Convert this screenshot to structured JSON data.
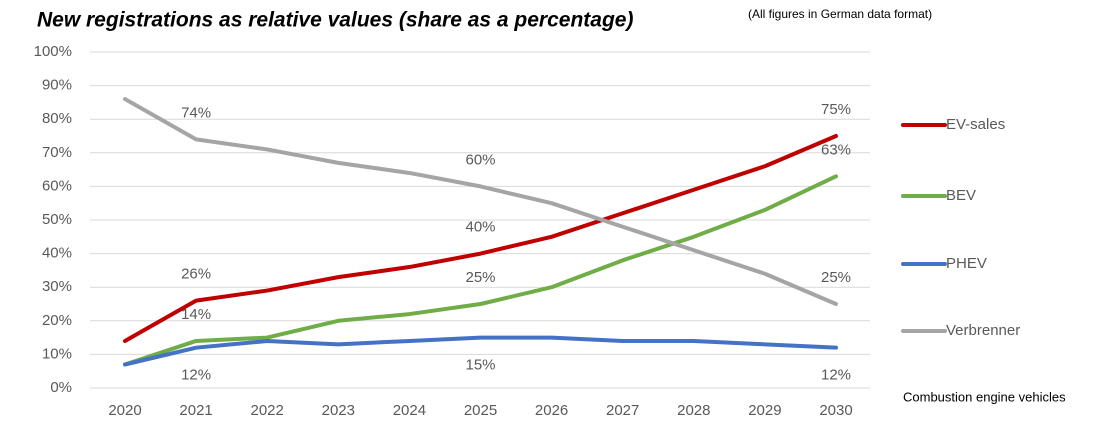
{
  "chart_data": {
    "type": "line",
    "title": "New registrations as relative values (share as a percentage)",
    "note": "(All figures in German data format)",
    "annotation": "Combustion engine vehicles",
    "categories": [
      "2020",
      "2021",
      "2022",
      "2023",
      "2024",
      "2025",
      "2026",
      "2027",
      "2028",
      "2029",
      "2030"
    ],
    "ylim": [
      0,
      100
    ],
    "yticks": [
      {
        "value": 0,
        "label": "0%"
      },
      {
        "value": 10,
        "label": "10%"
      },
      {
        "value": 20,
        "label": "20%"
      },
      {
        "value": 30,
        "label": "30%"
      },
      {
        "value": 40,
        "label": "40%"
      },
      {
        "value": 50,
        "label": "50%"
      },
      {
        "value": 60,
        "label": "60%"
      },
      {
        "value": 70,
        "label": "70%"
      },
      {
        "value": 80,
        "label": "80%"
      },
      {
        "value": 90,
        "label": "90%"
      },
      {
        "value": 100,
        "label": "100%"
      }
    ],
    "grid": true,
    "legend": "right",
    "series": [
      {
        "name": "EV-sales",
        "color": "#c00000",
        "values": [
          14,
          26,
          29,
          33,
          36,
          40,
          45,
          52,
          59,
          66,
          75
        ],
        "value_labels": [
          null,
          "26%",
          null,
          null,
          null,
          "40%",
          null,
          null,
          null,
          null,
          "75%"
        ]
      },
      {
        "name": "BEV",
        "color": "#70ad47",
        "values": [
          7,
          14,
          15,
          20,
          22,
          25,
          30,
          38,
          45,
          53,
          63
        ],
        "value_labels": [
          null,
          "14%",
          null,
          null,
          null,
          "25%",
          null,
          null,
          null,
          null,
          "63%"
        ]
      },
      {
        "name": "PHEV",
        "color": "#4472c4",
        "values": [
          7,
          12,
          14,
          13,
          14,
          15,
          15,
          14,
          14,
          13,
          12
        ],
        "value_labels": [
          null,
          "12%",
          null,
          null,
          null,
          "15%",
          null,
          null,
          null,
          null,
          "12%"
        ]
      },
      {
        "name": "Verbrenner",
        "color": "#a5a5a5",
        "values": [
          86,
          74,
          71,
          67,
          64,
          60,
          55,
          48,
          41,
          34,
          25
        ],
        "value_labels": [
          null,
          "74%",
          null,
          null,
          null,
          "60%",
          null,
          null,
          null,
          null,
          "25%"
        ]
      }
    ]
  }
}
